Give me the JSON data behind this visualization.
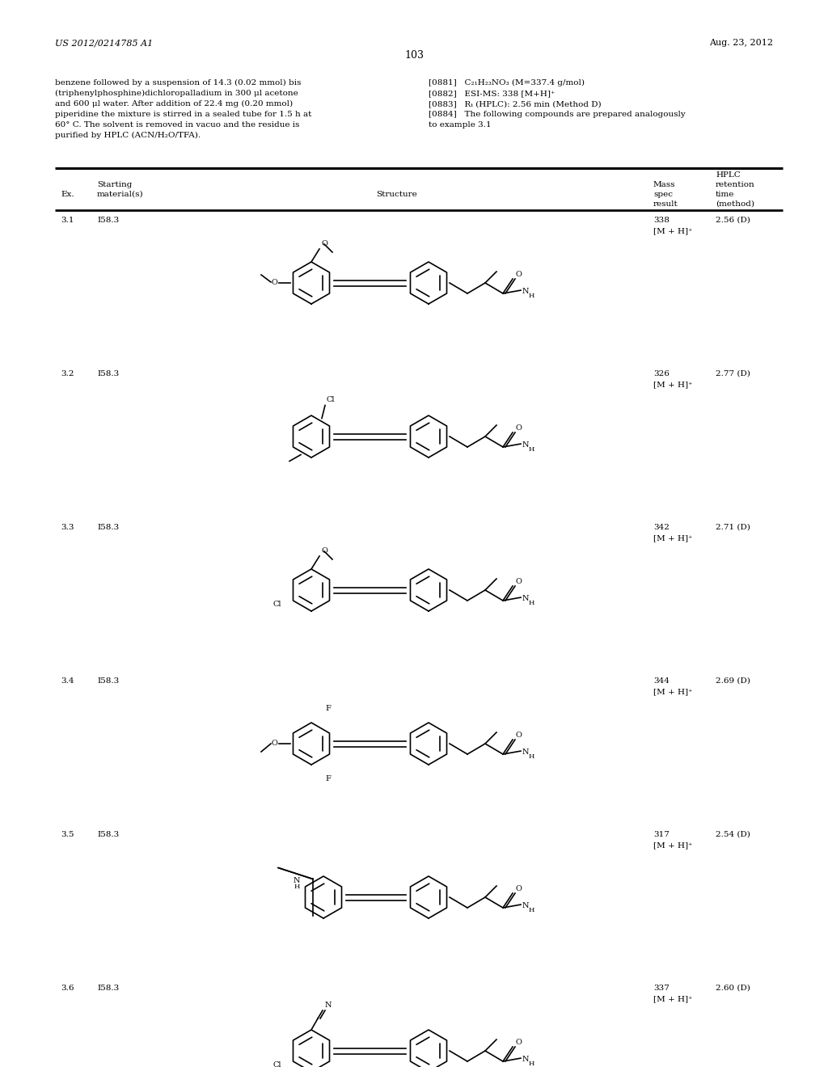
{
  "page_number": "103",
  "patent_number": "US 2012/0214785 A1",
  "patent_date": "Aug. 23, 2012",
  "header_text_left": "benzene followed by a suspension of 14.3 (0.02 mmol) bis\n(triphenylphosphine)dichloropalladium in 300 μl acetone\nand 600 μl water. After addition of 22.4 mg (0.20 mmol)\npiperidine the mixture is stirred in a sealed tube for 1.5 h at\n60° C. The solvent is removed in vacuo and the residue is\npurified by HPLC (ACN/H₂O/TFA).",
  "ref0881": "[0881]   C₂₁H₂₃NO₃ (M=337.4 g/mol)",
  "ref0882": "[0882]   ESI-MS: 338 [M+H]⁺",
  "ref0883": "[0883]   Rₜ (HPLC): 2.56 min (Method D)",
  "ref0884a": "[0884]   The following compounds are prepared analogously",
  "ref0884b": "to example 3.1",
  "col_hplc_header": "HPLC",
  "col_mass_header": "Mass",
  "col_ret_header": "retention",
  "col_spec_header": "spec",
  "col_time_header": "time",
  "col_result_header": "result",
  "col_method_header": "(method)",
  "col_starting_header": "Starting",
  "col_ex_header": "Ex.",
  "col_matls_header": "material(s)",
  "col_struct_header": "Structure",
  "rows": [
    {
      "ex": "3.1",
      "start": "I58.3",
      "mass": "338",
      "ion": "[M + H]⁺",
      "hplc": "2.56 (D)"
    },
    {
      "ex": "3.2",
      "start": "I58.3",
      "mass": "326",
      "ion": "[M + H]⁺",
      "hplc": "2.77 (D)"
    },
    {
      "ex": "3.3",
      "start": "I58.3",
      "mass": "342",
      "ion": "[M + H]⁺",
      "hplc": "2.71 (D)"
    },
    {
      "ex": "3.4",
      "start": "I58.3",
      "mass": "344",
      "ion": "[M + H]⁺",
      "hplc": "2.69 (D)"
    },
    {
      "ex": "3.5",
      "start": "I58.3",
      "mass": "317",
      "ion": "[M + H]⁺",
      "hplc": "2.54 (D)"
    },
    {
      "ex": "3.6",
      "start": "I58.3",
      "mass": "337",
      "ion": "[M + H]⁺",
      "hplc": "2.60 (D)"
    }
  ],
  "bg_color": "#ffffff",
  "text_color": "#000000"
}
